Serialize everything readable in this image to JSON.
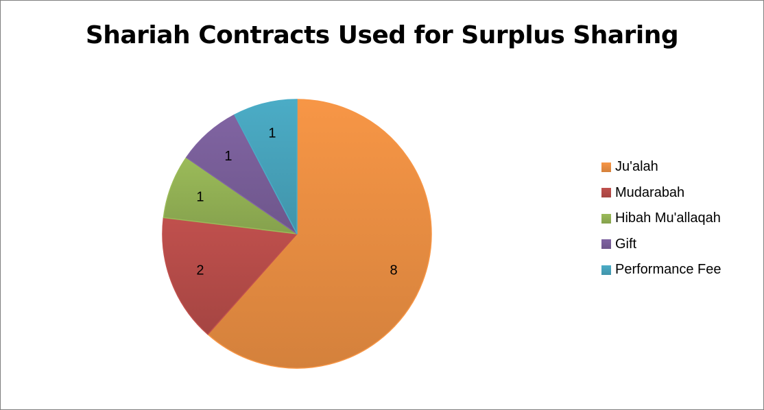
{
  "chart_data": {
    "type": "pie",
    "title": "Shariah Contracts Used for Surplus Sharing",
    "categories": [
      "Ju'alah",
      "Mudarabah",
      "Hibah Mu'allaqah",
      "Gift",
      "Performance Fee"
    ],
    "values": [
      8,
      2,
      1,
      1,
      1
    ],
    "colors": [
      "#F79646",
      "#C0504D",
      "#9BBB59",
      "#8064A2",
      "#4BACC6"
    ],
    "data_labels": [
      "8",
      "2",
      "1",
      "1",
      "1"
    ],
    "legend_position": "right",
    "start": "top",
    "direction": "clockwise"
  }
}
